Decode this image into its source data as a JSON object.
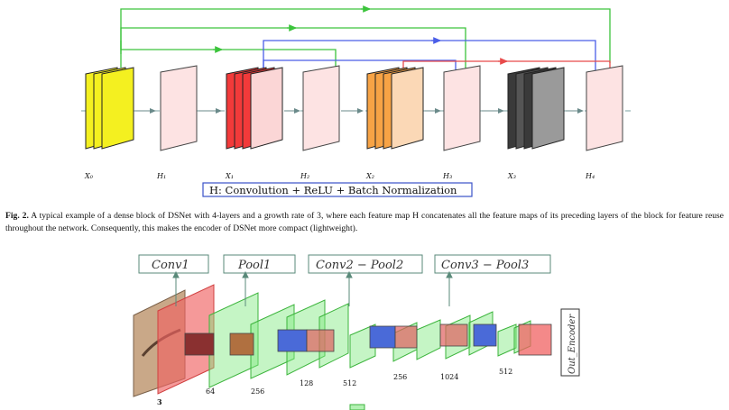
{
  "dense_block": {
    "node_labels": [
      "X₀",
      "H₁",
      "X₁",
      "H₂",
      "X₂",
      "H₃",
      "X₃",
      "H₄"
    ],
    "legend": "H: Convolution + ReLU + Batch Normalization",
    "colors": {
      "yellow": "#f4f020",
      "red": "#f23a3a",
      "orange": "#f7a345",
      "dark": "#3a3a3a",
      "pink": "#fde3e3",
      "green_link": "#3cc43c",
      "blue_link": "#4a5ee8",
      "red_link": "#e84a4a"
    }
  },
  "caption": {
    "label": "Fig. 2.",
    "text": "A typical example of a dense block of DSNet with 4-layers and a growth rate of 3, where each feature map H concatenates all the feature maps of its preceding layers of the block for feature reuse throughout the network. Consequently, this makes the encoder of DSNet more compact (lightweight)."
  },
  "encoder": {
    "boxes": [
      "Conv1",
      "Pool1",
      "Conv2 − Pool2",
      "Conv3 − Pool3"
    ],
    "output_label": "Out_Encoder",
    "channel_numbers": [
      "3",
      "64",
      "256",
      "128",
      "512",
      "256",
      "1024",
      "512"
    ]
  }
}
